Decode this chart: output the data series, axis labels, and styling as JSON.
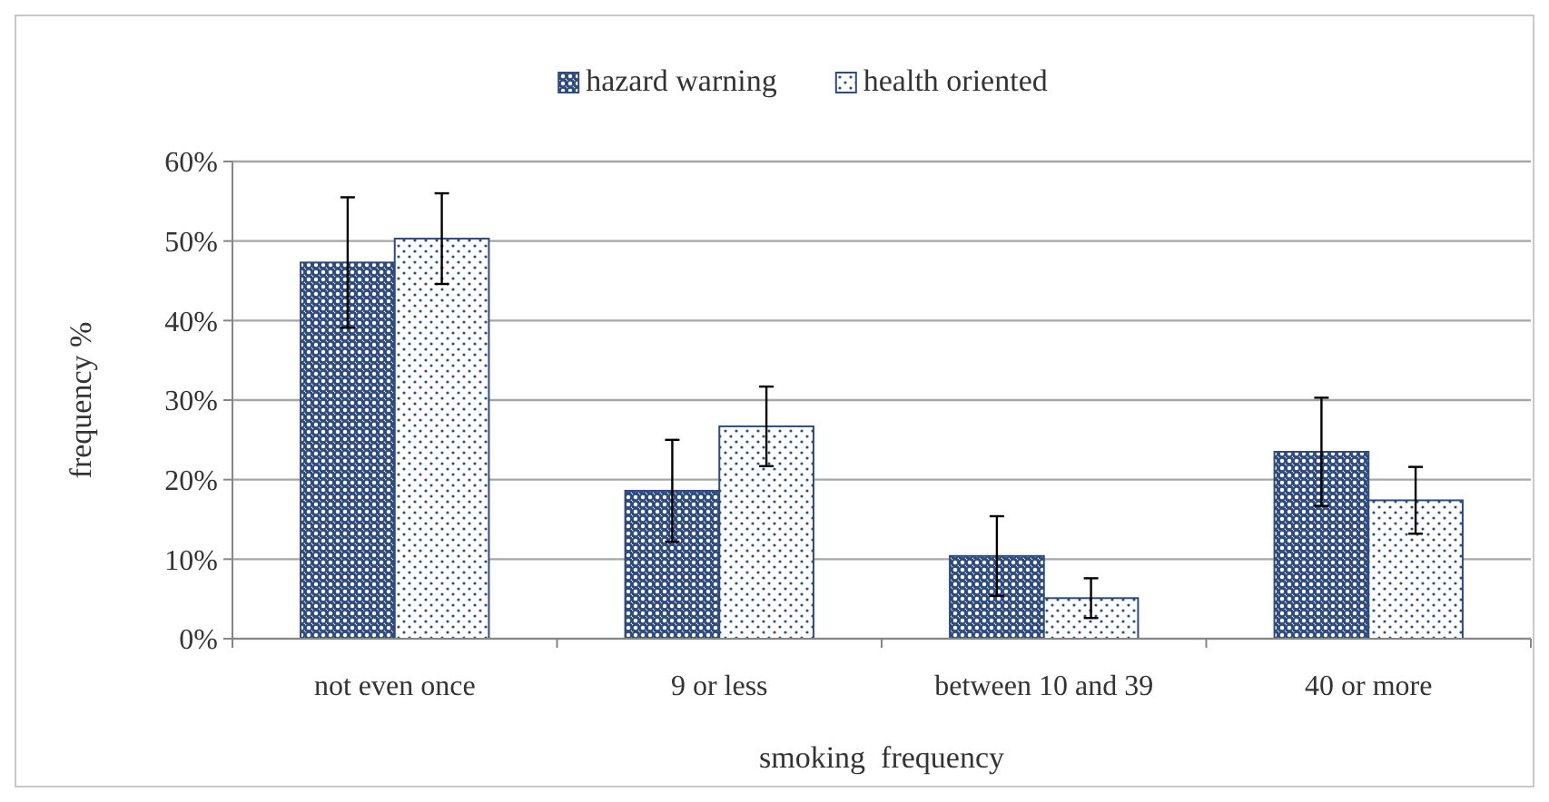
{
  "chart_data": {
    "type": "bar",
    "xlabel": "smoking  frequency",
    "ylabel": "frequency %",
    "categories": [
      "not even once",
      "9 or less",
      "between 10 and 39",
      "40 or more"
    ],
    "series": [
      {
        "name": "hazard warning",
        "color": "#2f4b7c",
        "values": [
          0.473,
          0.186,
          0.104,
          0.235
        ],
        "errors": [
          0.082,
          0.064,
          0.05,
          0.068
        ]
      },
      {
        "name": "health oriented",
        "color": "#2f4b7c",
        "values": [
          0.503,
          0.267,
          0.051,
          0.174
        ],
        "errors": [
          0.057,
          0.05,
          0.025,
          0.042
        ]
      }
    ],
    "ylim": [
      0,
      0.6
    ],
    "yticks": [
      {
        "value": 0,
        "label": "0%"
      },
      {
        "value": 0.1,
        "label": "10%"
      },
      {
        "value": 0.2,
        "label": "20%"
      },
      {
        "value": 0.3,
        "label": "30%"
      },
      {
        "value": 0.4,
        "label": "40%"
      },
      {
        "value": 0.5,
        "label": "50%"
      },
      {
        "value": 0.6,
        "label": "60%"
      }
    ],
    "grid": "y",
    "legend": "top"
  }
}
